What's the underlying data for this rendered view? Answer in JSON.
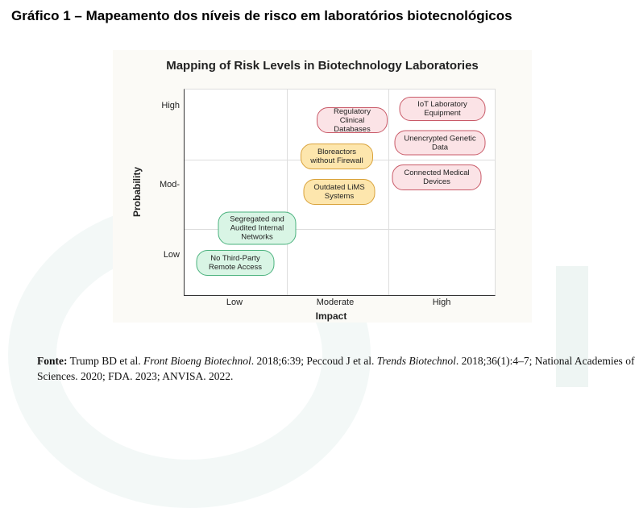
{
  "caption": "Gráfico 1 – Mapeamento dos níveis de risco em laboratórios biotecnológicos",
  "chart_data": {
    "type": "table",
    "title": "Mapping of Risk Levels in Biotechnology Laboratories",
    "xlabel": "Impact",
    "ylabel": "Probability",
    "x_ticks": [
      "Low",
      "Moderate",
      "High"
    ],
    "y_ticks": [
      "High",
      "Mod-",
      "Low"
    ],
    "grid": true,
    "colors": {
      "high": "#c95a68",
      "moderate": "#d9a23a",
      "low": "#4bb27e"
    },
    "items": [
      {
        "label": "IoT Laboratory Equipment",
        "impact": "High",
        "probability": "High",
        "level": "high"
      },
      {
        "label": "Regulatory Clinical Databases",
        "impact": "Moderate",
        "probability": "High",
        "level": "high"
      },
      {
        "label": "Unencrypted Genetic Data",
        "impact": "High",
        "probability": "High",
        "level": "high"
      },
      {
        "label": "Bloreactors without Firewall",
        "impact": "Moderate",
        "probability": "Moderate",
        "level": "mod"
      },
      {
        "label": "Connected Medical Devices",
        "impact": "High",
        "probability": "Moderate",
        "level": "high"
      },
      {
        "label": "Outdated LiMS Systems",
        "impact": "Moderate",
        "probability": "Moderate",
        "level": "mod"
      },
      {
        "label": "Segregated and Audited Internal Networks",
        "impact": "Low",
        "probability": "Low",
        "level": "low"
      },
      {
        "label": "No Third-Party Remote Access",
        "impact": "Low",
        "probability": "Low",
        "level": "low"
      }
    ]
  },
  "source": {
    "label": "Fonte:",
    "parts": [
      {
        "t": " Trump BD et al. ",
        "i": false
      },
      {
        "t": "Front Bioeng Biotechnol",
        "i": true
      },
      {
        "t": ". 2018;6:39; Peccoud J et al. ",
        "i": false
      },
      {
        "t": "Trends Biotechnol",
        "i": true
      },
      {
        "t": ". 2018;36(1):4–7; National Academies of Sciences. 2020; FDA. 2023; ANVISA. 2022.",
        "i": false
      }
    ]
  }
}
